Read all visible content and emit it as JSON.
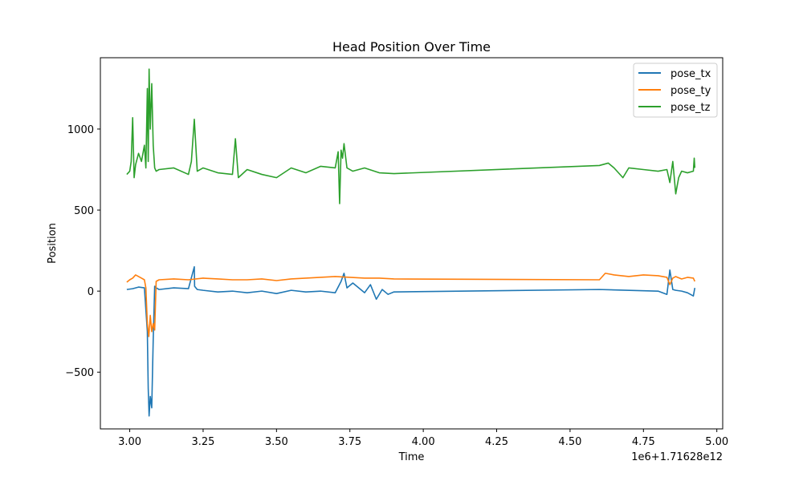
{
  "chart_data": {
    "type": "line",
    "title": "Head Position Over Time",
    "xlabel": "Time",
    "ylabel": "Position",
    "x_offset_label": "1e6+1.71628e12",
    "xlim": [
      2.9,
      5.02
    ],
    "ylim": [
      -850,
      1440
    ],
    "x_ticks": [
      3.0,
      3.25,
      3.5,
      3.75,
      4.0,
      4.25,
      4.5,
      4.75,
      5.0
    ],
    "x_tick_labels": [
      "3.00",
      "3.25",
      "3.50",
      "3.75",
      "4.00",
      "4.25",
      "4.50",
      "4.75",
      "5.00"
    ],
    "y_ticks": [
      -500,
      0,
      500,
      1000
    ],
    "y_tick_labels": [
      "−500",
      "0",
      "500",
      "1000"
    ],
    "grid": false,
    "legend_position": "top-right",
    "series": [
      {
        "name": "pose_tx",
        "color": "#1f77b4",
        "x": [
          2.99,
          3.01,
          3.03,
          3.05,
          3.06,
          3.063,
          3.066,
          3.07,
          3.075,
          3.08,
          3.085,
          3.09,
          3.1,
          3.15,
          3.2,
          3.22,
          3.221,
          3.23,
          3.25,
          3.3,
          3.35,
          3.4,
          3.45,
          3.5,
          3.55,
          3.6,
          3.65,
          3.7,
          3.72,
          3.73,
          3.74,
          3.76,
          3.8,
          3.82,
          3.84,
          3.86,
          3.88,
          3.9,
          4.6,
          4.8,
          4.83,
          4.84,
          4.85,
          4.86,
          4.88,
          4.9,
          4.92,
          4.925
        ],
        "y": [
          10,
          15,
          25,
          20,
          -250,
          -600,
          -770,
          -650,
          -720,
          -300,
          30,
          20,
          10,
          20,
          15,
          150,
          30,
          10,
          5,
          -5,
          0,
          -10,
          0,
          -15,
          5,
          -5,
          0,
          -10,
          60,
          110,
          20,
          50,
          -10,
          40,
          -50,
          10,
          -20,
          -5,
          10,
          0,
          -20,
          130,
          10,
          5,
          0,
          -10,
          -30,
          20
        ]
      },
      {
        "name": "pose_ty",
        "color": "#ff7f0e",
        "x": [
          2.99,
          3.0,
          3.01,
          3.02,
          3.03,
          3.04,
          3.05,
          3.055,
          3.06,
          3.065,
          3.07,
          3.075,
          3.08,
          3.085,
          3.09,
          3.1,
          3.15,
          3.2,
          3.25,
          3.3,
          3.35,
          3.4,
          3.45,
          3.5,
          3.55,
          3.6,
          3.65,
          3.7,
          3.75,
          3.8,
          3.85,
          3.9,
          4.6,
          4.62,
          4.65,
          4.7,
          4.75,
          4.8,
          4.83,
          4.84,
          4.85,
          4.86,
          4.88,
          4.9,
          4.92,
          4.925
        ],
        "y": [
          55,
          70,
          80,
          100,
          90,
          80,
          70,
          20,
          -200,
          -280,
          -150,
          -250,
          -200,
          -240,
          60,
          70,
          75,
          70,
          80,
          75,
          70,
          70,
          75,
          65,
          75,
          80,
          85,
          90,
          85,
          80,
          80,
          75,
          70,
          110,
          100,
          90,
          100,
          95,
          85,
          40,
          80,
          90,
          75,
          85,
          80,
          60
        ]
      },
      {
        "name": "pose_tz",
        "color": "#2ca02c",
        "x": [
          2.99,
          3.0,
          3.005,
          3.01,
          3.015,
          3.02,
          3.03,
          3.04,
          3.05,
          3.055,
          3.06,
          3.063,
          3.066,
          3.07,
          3.075,
          3.08,
          3.085,
          3.09,
          3.1,
          3.15,
          3.2,
          3.21,
          3.22,
          3.23,
          3.25,
          3.3,
          3.35,
          3.36,
          3.37,
          3.4,
          3.45,
          3.5,
          3.55,
          3.6,
          3.65,
          3.7,
          3.71,
          3.715,
          3.72,
          3.725,
          3.73,
          3.74,
          3.76,
          3.8,
          3.85,
          3.9,
          4.6,
          4.63,
          4.65,
          4.68,
          4.7,
          4.75,
          4.8,
          4.83,
          4.84,
          4.85,
          4.86,
          4.87,
          4.88,
          4.9,
          4.92,
          4.923,
          4.925
        ],
        "y": [
          720,
          740,
          800,
          1070,
          700,
          780,
          850,
          800,
          900,
          760,
          1250,
          800,
          1370,
          1000,
          1280,
          900,
          760,
          740,
          750,
          760,
          720,
          800,
          1060,
          740,
          760,
          730,
          720,
          940,
          700,
          750,
          720,
          700,
          760,
          730,
          770,
          760,
          860,
          540,
          870,
          820,
          910,
          760,
          740,
          760,
          730,
          725,
          775,
          790,
          760,
          700,
          760,
          750,
          740,
          750,
          670,
          800,
          600,
          700,
          740,
          730,
          740,
          820,
          760
        ]
      }
    ]
  }
}
